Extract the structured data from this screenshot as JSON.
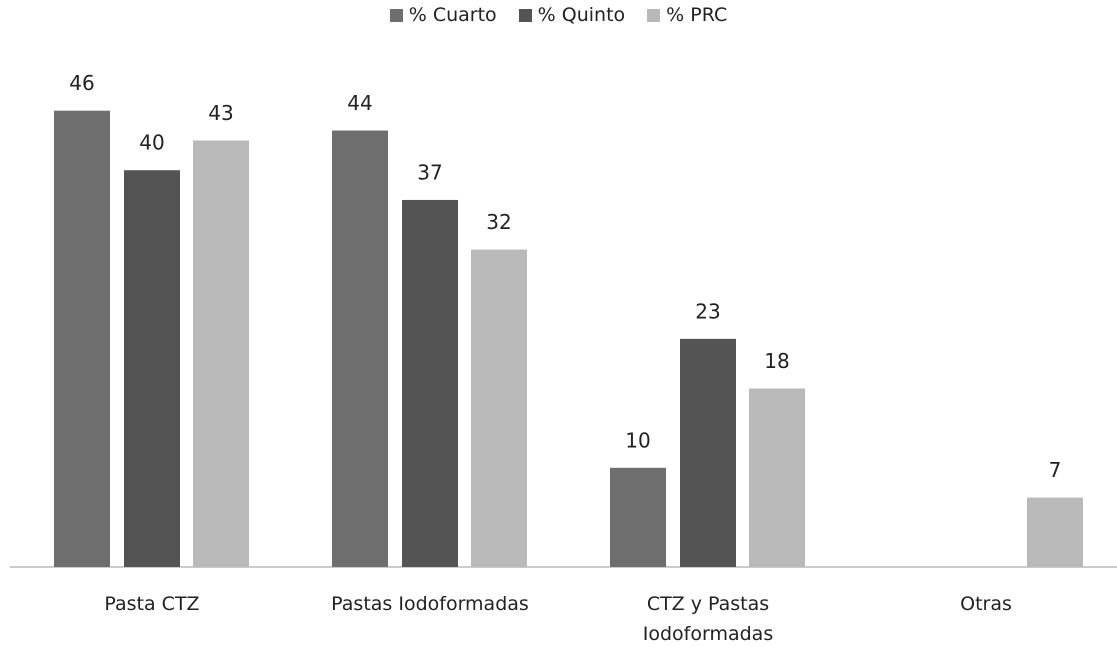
{
  "chart_data": {
    "type": "bar",
    "categories": [
      "Pasta CTZ",
      "Pastas Iodoformadas",
      "CTZ y Pastas Iodoformadas",
      "Otras"
    ],
    "series": [
      {
        "name": "% Cuarto",
        "color": "#6e6e6e",
        "values": [
          46,
          44,
          10,
          null
        ]
      },
      {
        "name": "% Quinto",
        "color": "#545454",
        "values": [
          40,
          37,
          23,
          null
        ]
      },
      {
        "name": "% PRC",
        "color": "#b9b9b9",
        "values": [
          43,
          32,
          18,
          7
        ]
      }
    ],
    "ylim": [
      0,
      50
    ],
    "legend": "top"
  }
}
